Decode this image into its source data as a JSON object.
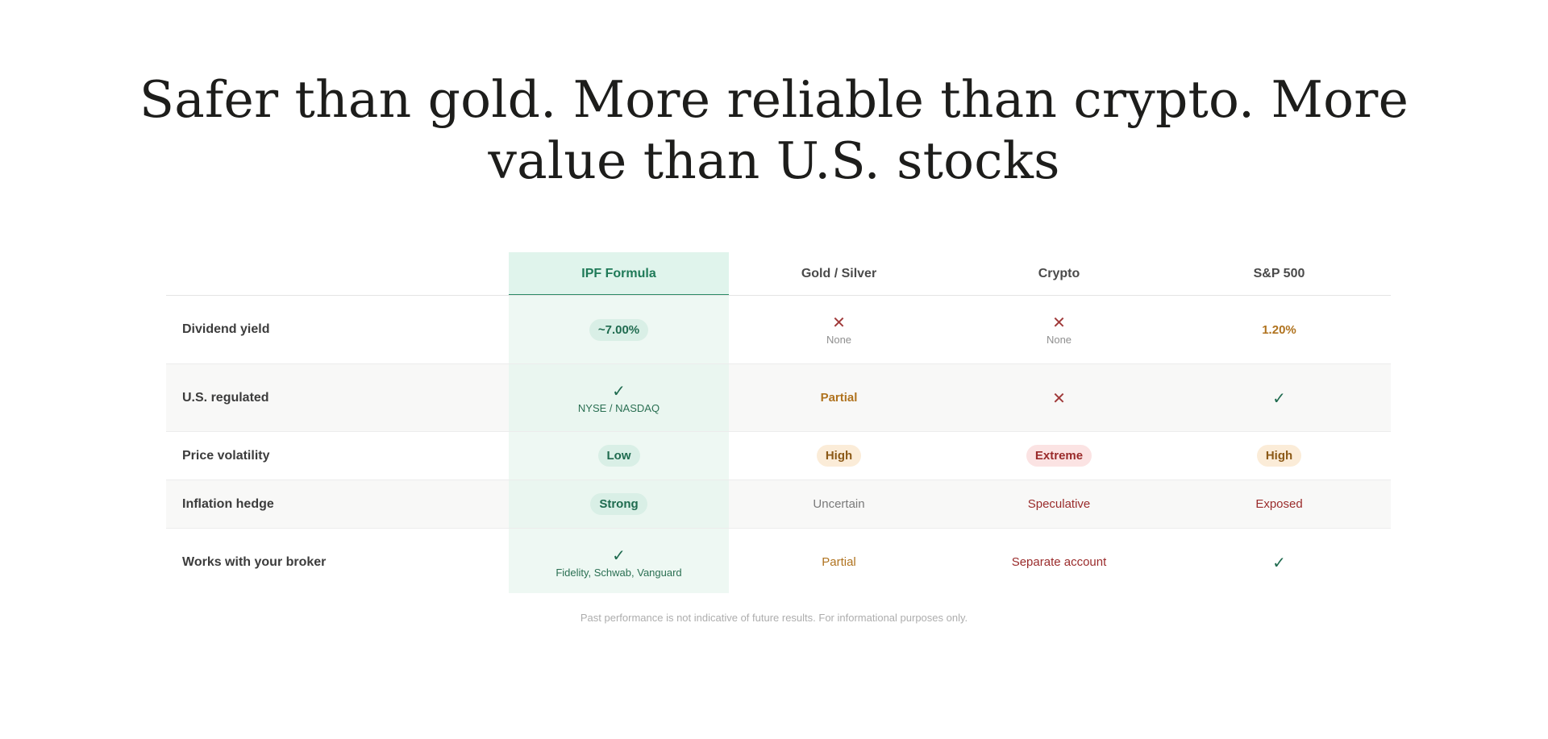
{
  "headline": {
    "line1": "Safer than gold. More reliable than crypto. More",
    "line2": "value than U.S. stocks"
  },
  "table": {
    "columns": {
      "ipf": "IPF Formula",
      "gold": "Gold / Silver",
      "crypto": "Crypto",
      "sp500": "S&P 500"
    },
    "rows": {
      "dividend_yield": {
        "label": "Dividend yield",
        "ipf": "~7.00%",
        "gold_sub": "None",
        "crypto_sub": "None",
        "sp500": "1.20%"
      },
      "us_regulated": {
        "label": "U.S. regulated",
        "ipf_sub": "NYSE / NASDAQ",
        "gold": "Partial"
      },
      "price_volatility": {
        "label": "Price volatility",
        "ipf": "Low",
        "gold": "High",
        "crypto": "Extreme",
        "sp500": "High"
      },
      "inflation_hedge": {
        "label": "Inflation hedge",
        "ipf": "Strong",
        "gold": "Uncertain",
        "crypto": "Speculative",
        "sp500": "Exposed"
      },
      "works_with_broker": {
        "label": "Works with your broker",
        "ipf_sub": "Fidelity, Schwab, Vanguard",
        "gold": "Partial",
        "crypto": "Separate account"
      }
    },
    "icons": {
      "check": "✓",
      "cross": "✕"
    }
  },
  "footnote": "Past performance is not indicative of future results. For informational purposes only.",
  "colors": {
    "accent_green": "#1f7a58",
    "highlight_column": "#eef8f3",
    "amber": "#b0731f",
    "red": "#9a2b2b"
  }
}
